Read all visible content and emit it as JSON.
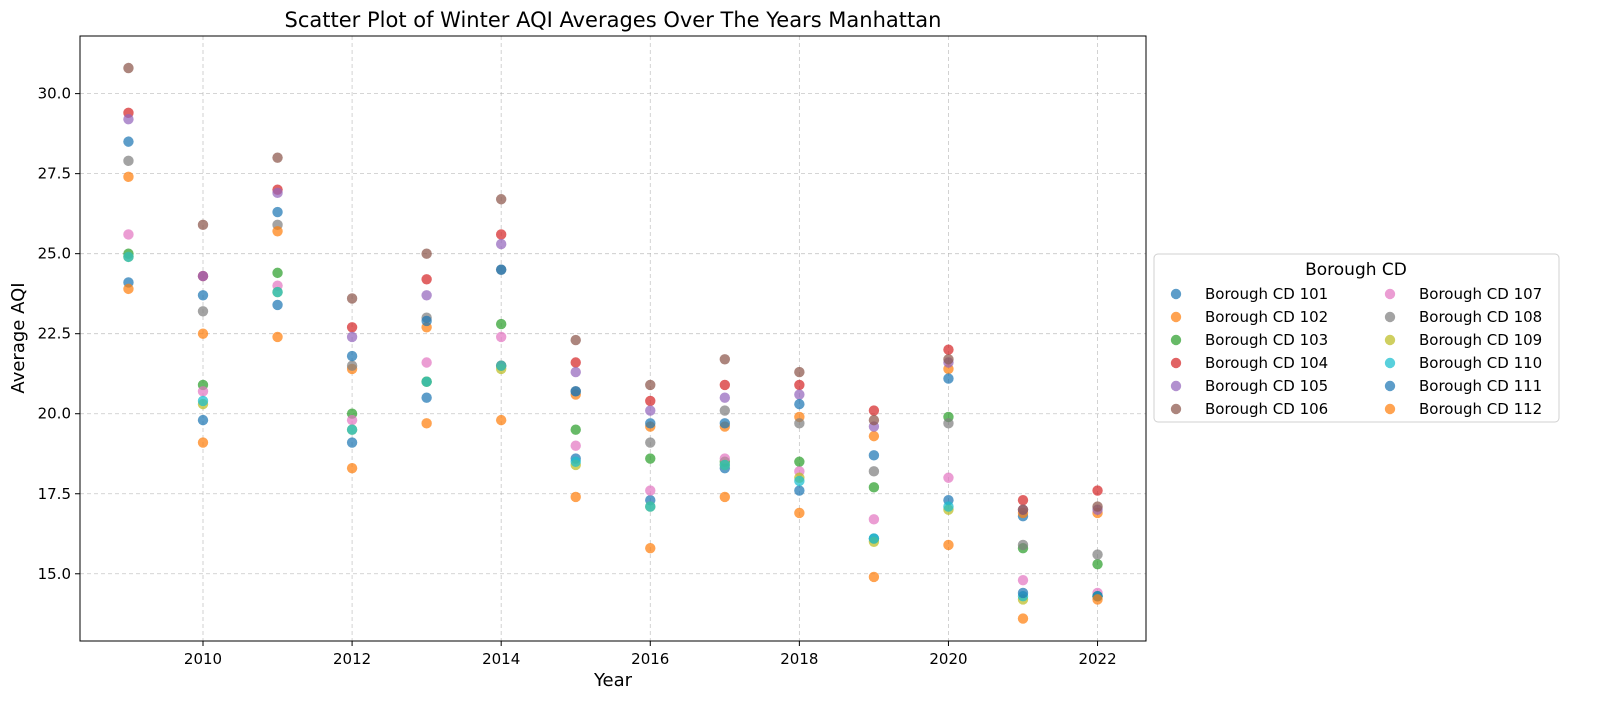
{
  "chart_data": {
    "type": "scatter",
    "title": "Scatter Plot of Winter AQI Averages Over The Years Manhattan",
    "xlabel": "Year",
    "ylabel": "Average AQI",
    "xlim": [
      2008.35,
      2022.65
    ],
    "ylim": [
      12.9,
      31.8
    ],
    "x_ticks": [
      2010,
      2012,
      2014,
      2016,
      2018,
      2020,
      2022
    ],
    "y_ticks": [
      15.0,
      17.5,
      20.0,
      22.5,
      25.0,
      27.5,
      30.0
    ],
    "y_tick_labels": [
      "15.0",
      "17.5",
      "20.0",
      "22.5",
      "25.0",
      "27.5",
      "30.0"
    ],
    "grid": true,
    "legend_title": "Borough CD",
    "legend_position": "center-right-outside",
    "x": [
      2009,
      2010,
      2011,
      2012,
      2013,
      2014,
      2015,
      2016,
      2017,
      2018,
      2019,
      2020,
      2021,
      2022
    ],
    "series": [
      {
        "name": "Borough CD 101",
        "color": "#1f77b4",
        "values": [
          24.1,
          19.8,
          23.4,
          19.1,
          20.5,
          21.5,
          18.6,
          17.3,
          18.3,
          17.6,
          16.1,
          17.3,
          16.8,
          14.3
        ]
      },
      {
        "name": "Borough CD 102",
        "color": "#ff7f0e",
        "values": [
          23.9,
          22.5,
          22.4,
          21.4,
          22.7,
          21.5,
          20.6,
          19.6,
          19.6,
          19.9,
          19.3,
          21.4,
          16.9,
          16.9
        ]
      },
      {
        "name": "Borough CD 103",
        "color": "#2ca02c",
        "values": [
          25.0,
          20.9,
          24.4,
          20.0,
          21.0,
          22.8,
          19.5,
          18.6,
          18.5,
          18.5,
          17.7,
          19.9,
          15.8,
          15.3
        ]
      },
      {
        "name": "Borough CD 104",
        "color": "#d62728",
        "values": [
          29.4,
          24.3,
          27.0,
          22.7,
          24.2,
          25.6,
          21.6,
          20.4,
          20.9,
          20.9,
          20.1,
          22.0,
          17.3,
          17.6
        ]
      },
      {
        "name": "Borough CD 105",
        "color": "#9467bd",
        "values": [
          29.2,
          24.3,
          26.9,
          22.4,
          23.7,
          25.3,
          21.3,
          20.1,
          20.5,
          20.6,
          19.6,
          21.6,
          17.0,
          17.0
        ]
      },
      {
        "name": "Borough CD 106",
        "color": "#8c564b",
        "values": [
          30.8,
          25.9,
          28.0,
          23.6,
          25.0,
          26.7,
          22.3,
          20.9,
          21.7,
          21.3,
          19.8,
          21.7,
          17.0,
          17.1
        ]
      },
      {
        "name": "Borough CD 107",
        "color": "#e377c2",
        "values": [
          25.6,
          20.7,
          24.0,
          19.8,
          21.6,
          22.4,
          19.0,
          17.6,
          18.6,
          18.2,
          16.7,
          18.0,
          14.8,
          14.4
        ]
      },
      {
        "name": "Borough CD 108",
        "color": "#7f7f7f",
        "values": [
          27.9,
          23.2,
          25.9,
          21.5,
          23.0,
          24.5,
          20.7,
          19.1,
          20.1,
          19.7,
          18.2,
          19.7,
          15.9,
          15.6
        ]
      },
      {
        "name": "Borough CD 109",
        "color": "#bcbd22",
        "values": [
          24.9,
          20.3,
          23.8,
          19.5,
          21.0,
          21.4,
          18.4,
          17.1,
          18.4,
          18.0,
          16.0,
          17.0,
          14.2,
          14.3
        ]
      },
      {
        "name": "Borough CD 110",
        "color": "#17becf",
        "values": [
          24.9,
          20.4,
          23.8,
          19.5,
          21.0,
          21.5,
          18.5,
          17.1,
          18.4,
          17.9,
          16.1,
          17.1,
          14.3,
          14.3
        ]
      },
      {
        "name": "Borough CD 111",
        "color": "#1f77b4",
        "values": [
          28.5,
          23.7,
          26.3,
          21.8,
          22.9,
          24.5,
          20.7,
          19.7,
          19.7,
          20.3,
          18.7,
          21.1,
          14.4,
          14.3
        ]
      },
      {
        "name": "Borough CD 112",
        "color": "#ff7f0e",
        "values": [
          27.4,
          19.1,
          25.7,
          18.3,
          19.7,
          19.8,
          17.4,
          15.8,
          17.4,
          16.9,
          14.9,
          15.9,
          13.6,
          14.2
        ]
      }
    ]
  }
}
